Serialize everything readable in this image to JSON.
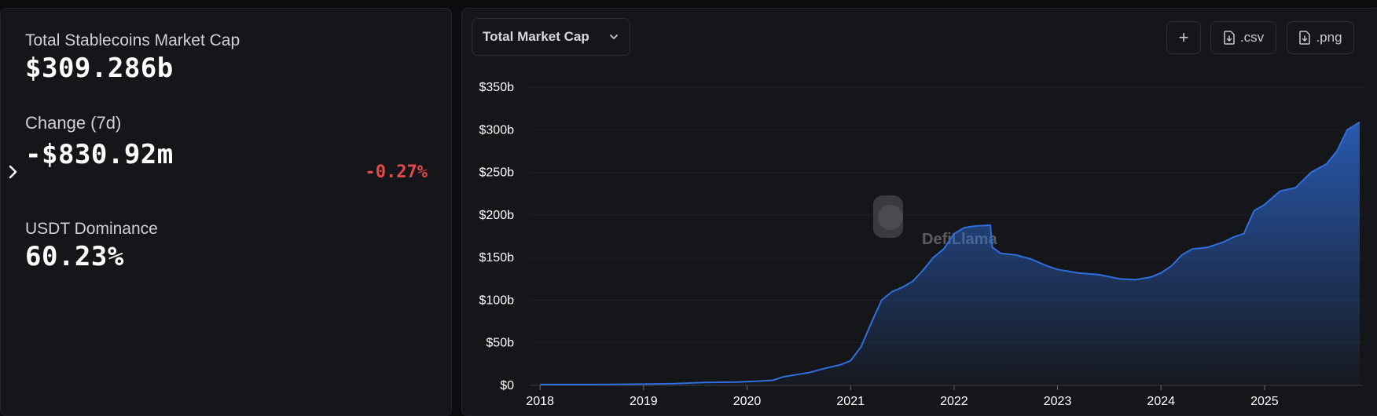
{
  "stats": {
    "market_cap_label": "Total Stablecoins Market Cap",
    "market_cap_value": "$309.286b",
    "change_label": "Change (7d)",
    "change_value": "-$830.92m",
    "change_percent": "-0.27%",
    "dominance_label": "USDT Dominance",
    "dominance_value": "60.23%"
  },
  "toolbar": {
    "dropdown_label": "Total Market Cap",
    "add_label": "+",
    "csv_label": ".csv",
    "png_label": ".png"
  },
  "watermark": "DefiLlama",
  "colors": {
    "line": "#2f6fe0",
    "negative": "#e24a4a",
    "panel": "#151619"
  },
  "chart_data": {
    "type": "area",
    "title": "",
    "xlabel": "",
    "ylabel": "",
    "x_ticks": [
      "2018",
      "2019",
      "2020",
      "2021",
      "2022",
      "2023",
      "2024",
      "2025"
    ],
    "y_ticks": [
      "$0",
      "$50b",
      "$100b",
      "$150b",
      "$200b",
      "$250b",
      "$300b",
      "$350b"
    ],
    "xlim": [
      2017.9,
      2025.95
    ],
    "ylim": [
      0,
      350
    ],
    "grid": true,
    "legend": "none",
    "series": [
      {
        "x": [
          2018.0,
          2018.5,
          2019.0,
          2019.3,
          2019.6,
          2019.9,
          2020.1,
          2020.25,
          2020.35,
          2020.6,
          2020.75,
          2020.9,
          2021.0,
          2021.1,
          2021.2,
          2021.3,
          2021.4,
          2021.5,
          2021.6,
          2021.7,
          2021.8,
          2021.9,
          2022.0,
          2022.1,
          2022.2,
          2022.35,
          2022.37,
          2022.45,
          2022.6,
          2022.75,
          2022.9,
          2023.0,
          2023.2,
          2023.4,
          2023.6,
          2023.75,
          2023.9,
          2024.0,
          2024.1,
          2024.2,
          2024.3,
          2024.45,
          2024.6,
          2024.7,
          2024.8,
          2024.9,
          2025.0,
          2025.15,
          2025.3,
          2025.45,
          2025.6,
          2025.7,
          2025.8,
          2025.88,
          2025.92
        ],
        "values": [
          1,
          1,
          1.5,
          2,
          3.5,
          4,
          5,
          6,
          10,
          15,
          20,
          24,
          29,
          45,
          73,
          100,
          110,
          115,
          122,
          135,
          150,
          160,
          178,
          185,
          187,
          188,
          162,
          155,
          153,
          148,
          140,
          136,
          132,
          130,
          125,
          124,
          127,
          132,
          140,
          153,
          160,
          162,
          168,
          174,
          178,
          205,
          212,
          228,
          232,
          250,
          260,
          275,
          300,
          306,
          309
        ]
      }
    ]
  }
}
